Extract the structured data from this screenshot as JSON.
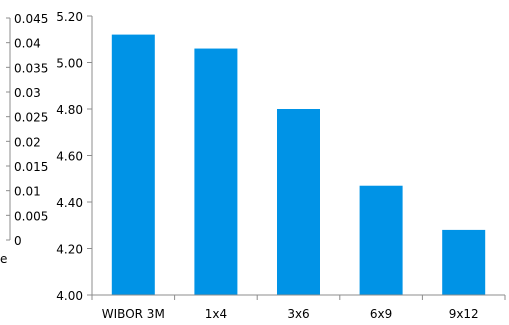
{
  "chart_data": {
    "type": "bar",
    "categories": [
      "WIBOR 3M",
      "1x4",
      "3x6",
      "6x9",
      "9x12"
    ],
    "series": [
      {
        "values": [
          5.12,
          5.06,
          4.8,
          4.47,
          4.28
        ],
        "color": "#0093e6"
      }
    ],
    "ylim": [
      4.0,
      5.2
    ],
    "yticks": [
      "4.00",
      "4.20",
      "4.40",
      "4.60",
      "4.80",
      "5.00",
      "5.20"
    ],
    "grid": false,
    "legend": "none",
    "secondary_axis": {
      "ticks": [
        "0",
        "0.005",
        "0.01",
        "0.015",
        "0.02",
        "0.025",
        "0.03",
        "0.035",
        "0.04",
        "0.045"
      ],
      "ylim": [
        0,
        0.045
      ],
      "partial_label": "e"
    }
  }
}
